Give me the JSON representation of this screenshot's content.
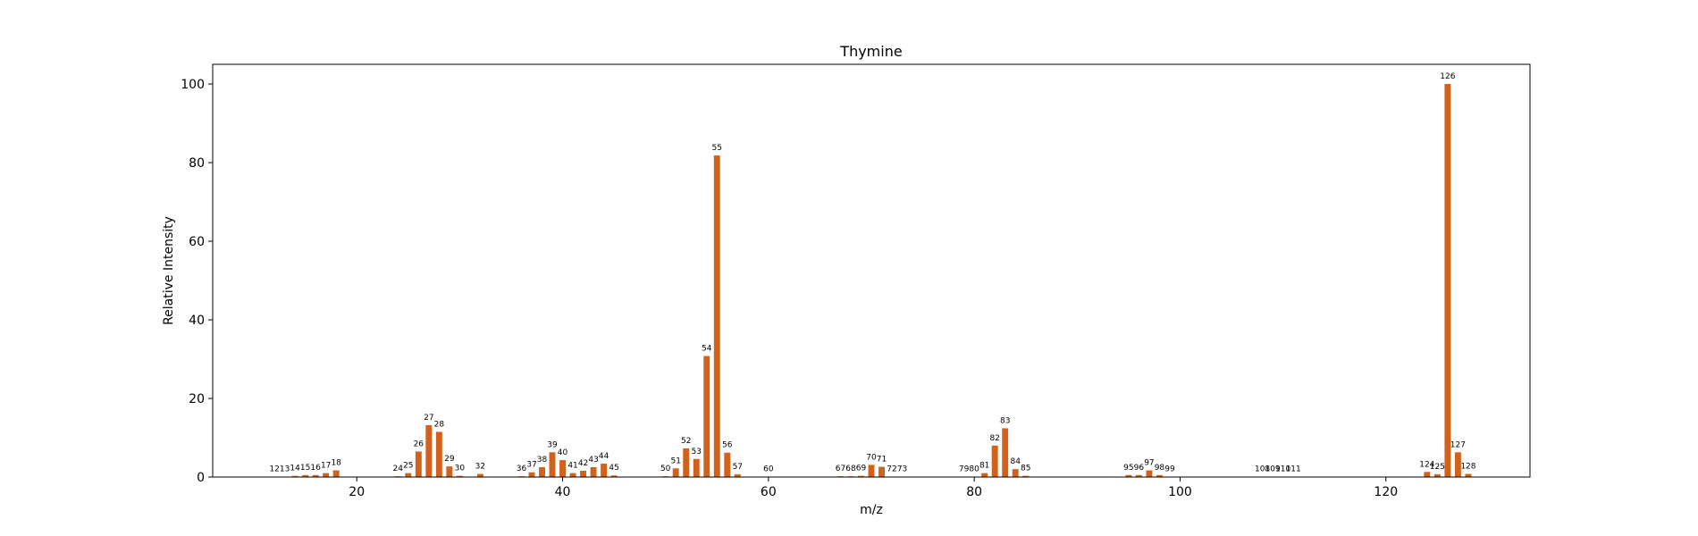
{
  "chart_data": {
    "type": "bar",
    "title": "Thymine",
    "xlabel": "m/z",
    "ylabel": "Relative Intensity",
    "xlim": [
      6,
      134
    ],
    "ylim": [
      0,
      105
    ],
    "xticks": [
      20,
      40,
      60,
      80,
      100,
      120
    ],
    "yticks": [
      0,
      20,
      40,
      60,
      80,
      100
    ],
    "grid": false,
    "bar_color": "#D2611C",
    "x": [
      12,
      13,
      14,
      15,
      16,
      17,
      18,
      24,
      25,
      26,
      27,
      28,
      29,
      30,
      32,
      36,
      37,
      38,
      39,
      40,
      41,
      42,
      43,
      44,
      45,
      50,
      51,
      52,
      53,
      54,
      55,
      56,
      57,
      60,
      67,
      68,
      69,
      70,
      71,
      72,
      73,
      79,
      80,
      81,
      82,
      83,
      84,
      85,
      95,
      96,
      97,
      98,
      99,
      108,
      109,
      110,
      111,
      124,
      125,
      126,
      127,
      128
    ],
    "values": [
      0.1,
      0.1,
      0.3,
      0.5,
      0.5,
      1.0,
      1.7,
      0.2,
      1.0,
      6.5,
      13.2,
      11.5,
      2.7,
      0.3,
      0.8,
      0.2,
      1.2,
      2.5,
      6.3,
      4.3,
      1.0,
      1.6,
      2.5,
      3.4,
      0.4,
      0.2,
      2.2,
      7.3,
      4.6,
      30.8,
      81.8,
      6.2,
      0.7,
      0.1,
      0.2,
      0.2,
      0.3,
      3.1,
      2.6,
      0.1,
      0.1,
      0.1,
      0.1,
      1.0,
      8.0,
      12.4,
      2.0,
      0.3,
      0.5,
      0.5,
      1.7,
      0.5,
      0.1,
      0.1,
      0.1,
      0.1,
      0.1,
      1.3,
      0.7,
      100.0,
      6.3,
      0.8
    ],
    "labels": [
      "12",
      "13",
      "14",
      "15",
      "16",
      "17",
      "18",
      "24",
      "25",
      "26",
      "27",
      "28",
      "29",
      "30",
      "32",
      "36",
      "37",
      "38",
      "39",
      "40",
      "41",
      "42",
      "43",
      "44",
      "45",
      "50",
      "51",
      "52",
      "53",
      "54",
      "55",
      "56",
      "57",
      "60",
      "67",
      "68",
      "69",
      "70",
      "71",
      "72",
      "73",
      "79",
      "80",
      "81",
      "82",
      "83",
      "84",
      "85",
      "95",
      "96",
      "97",
      "98",
      "99",
      "108",
      "109",
      "110",
      "111",
      "124",
      "125",
      "126",
      "127",
      "128"
    ]
  }
}
